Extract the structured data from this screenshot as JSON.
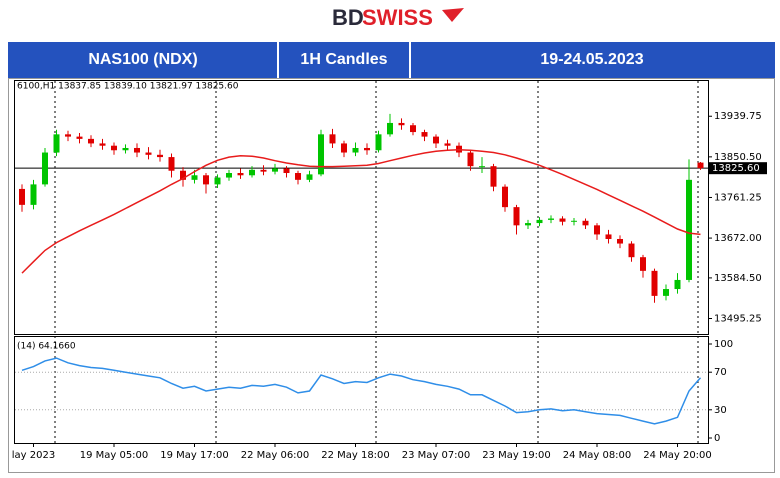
{
  "logo": {
    "bd": "BD",
    "swiss": "SWISS"
  },
  "header": [
    "NAS100 (NDX)",
    "1H Candles",
    "19-24.05.2023"
  ],
  "chart_data": {
    "type": "candlestick",
    "info": "6100,H1  13837.85 13839.10 13821.97 13825.60",
    "up_color": "#00c400",
    "down_color": "#e00000",
    "open": [
      13780,
      13745,
      13790,
      13860,
      13900,
      13895,
      13890,
      13880,
      13875,
      13865,
      13870,
      13860,
      13855,
      13850,
      13820,
      13800,
      13810,
      13790,
      13805,
      13815,
      13810,
      13822,
      13818,
      13825,
      13815,
      13800,
      13812,
      13900,
      13880,
      13860,
      13870,
      13865,
      13900,
      13925,
      13920,
      13905,
      13895,
      13880,
      13875,
      13860,
      13830,
      13830,
      13785,
      13740,
      13700,
      13705,
      13712,
      13715,
      13708,
      13710,
      13700,
      13680,
      13670,
      13660,
      13630,
      13600,
      13545,
      13560,
      13580,
      13837.85
    ],
    "high": [
      13790,
      13800,
      13870,
      13910,
      13908,
      13903,
      13898,
      13890,
      13882,
      13878,
      13880,
      13872,
      13866,
      13858,
      13828,
      13822,
      13815,
      13812,
      13822,
      13825,
      13830,
      13832,
      13835,
      13830,
      13820,
      13820,
      13910,
      13912,
      13886,
      13882,
      13880,
      13908,
      13945,
      13935,
      13925,
      13910,
      13900,
      13888,
      13882,
      13866,
      13850,
      13835,
      13790,
      13745,
      13712,
      13718,
      13722,
      13720,
      13716,
      13715,
      13705,
      13690,
      13678,
      13665,
      13635,
      13605,
      13570,
      13595,
      13845,
      13839.1
    ],
    "low": [
      13730,
      13735,
      13785,
      13852,
      13885,
      13880,
      13872,
      13866,
      13855,
      13858,
      13850,
      13845,
      13840,
      13805,
      13785,
      13792,
      13770,
      13782,
      13798,
      13802,
      13805,
      13810,
      13812,
      13805,
      13790,
      13795,
      13808,
      13870,
      13850,
      13852,
      13855,
      13860,
      13895,
      13910,
      13898,
      13885,
      13870,
      13865,
      13850,
      13820,
      13815,
      13775,
      13730,
      13680,
      13692,
      13698,
      13705,
      13700,
      13700,
      13692,
      13668,
      13660,
      13650,
      13620,
      13585,
      13530,
      13535,
      13550,
      13575,
      13821.97
    ],
    "close": [
      13745,
      13790,
      13860,
      13900,
      13895,
      13890,
      13880,
      13875,
      13865,
      13870,
      13860,
      13855,
      13850,
      13820,
      13800,
      13810,
      13790,
      13805,
      13815,
      13810,
      13822,
      13818,
      13825,
      13815,
      13800,
      13812,
      13900,
      13880,
      13860,
      13870,
      13865,
      13900,
      13925,
      13920,
      13905,
      13895,
      13880,
      13875,
      13860,
      13830,
      13830,
      13785,
      13740,
      13700,
      13705,
      13712,
      13715,
      13708,
      13710,
      13700,
      13680,
      13670,
      13660,
      13630,
      13600,
      13545,
      13560,
      13580,
      13800,
      13825.6
    ],
    "ylim": [
      13470,
      14015
    ],
    "yticks": [
      13939.75,
      {
        "value": 13850.5,
        "label": "13850.50"
      },
      13761.25,
      {
        "value": 13672,
        "label": "13672.00"
      },
      {
        "value": 13584.5,
        "label": "13584.50"
      },
      13495.25
    ],
    "current_price": {
      "value": 13825.6,
      "label": "13825.60"
    },
    "ma": {
      "color": "#e81c1c",
      "values": [
        13595,
        13620,
        13645,
        13662,
        13675,
        13688,
        13700,
        13712,
        13724,
        13737,
        13750,
        13763,
        13776,
        13790,
        13803,
        13818,
        13832,
        13843,
        13850,
        13853,
        13852,
        13848,
        13842,
        13837,
        13833,
        13830,
        13829,
        13829,
        13830,
        13831,
        13832,
        13836,
        13842,
        13848,
        13854,
        13859,
        13863,
        13865,
        13866,
        13865,
        13863,
        13860,
        13855,
        13848,
        13840,
        13832,
        13822,
        13812,
        13801,
        13790,
        13779,
        13767,
        13755,
        13743,
        13731,
        13718,
        13705,
        13692,
        13683,
        13680
      ]
    },
    "rsi": {
      "label": "(14) 64.1660",
      "color": "#2f8ee8",
      "ylim": [
        0,
        100
      ],
      "yticks": [
        0,
        30,
        70,
        100
      ],
      "values": [
        72,
        76,
        82,
        85,
        80,
        77,
        75,
        74,
        72,
        70,
        68,
        66,
        64,
        58,
        53,
        55,
        50,
        52,
        54,
        53,
        56,
        55,
        57,
        54,
        48,
        50,
        67,
        63,
        58,
        60,
        59,
        64,
        68,
        66,
        62,
        60,
        57,
        55,
        52,
        46,
        46,
        40,
        34,
        27,
        28,
        30,
        31,
        29,
        30,
        28,
        26,
        25,
        24,
        21,
        18,
        15,
        18,
        22,
        50,
        64.166
      ]
    },
    "xticks": [
      {
        "value": 1,
        "label": "lay 2023"
      },
      {
        "value": 8,
        "label": "19 May 05:00"
      },
      {
        "value": 15,
        "label": "19 May 17:00"
      },
      {
        "value": 22,
        "label": "22 May 06:00"
      },
      {
        "value": 29,
        "label": "22 May 18:00"
      },
      {
        "value": 36,
        "label": "23 May 07:00"
      },
      {
        "value": 43,
        "label": "23 May 19:00"
      },
      {
        "value": 50,
        "label": "24 May 08:00"
      },
      {
        "value": 57,
        "label": "24 May 20:00"
      }
    ]
  }
}
